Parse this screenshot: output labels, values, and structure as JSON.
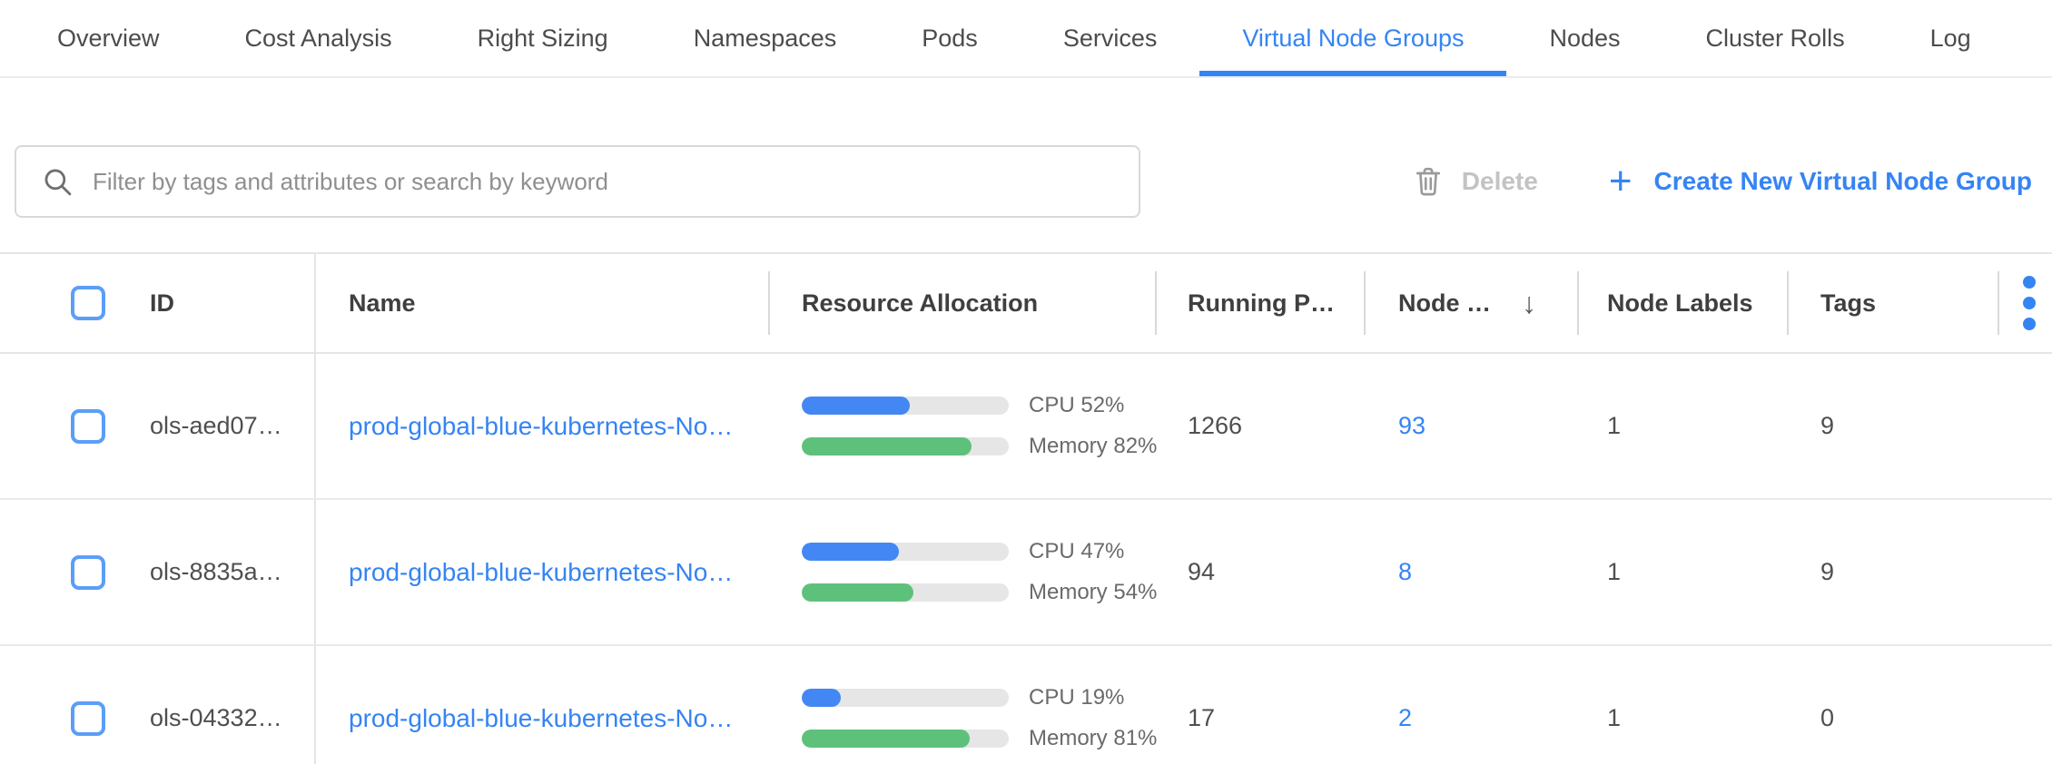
{
  "tabs": {
    "items": [
      {
        "label": "Overview",
        "active": false
      },
      {
        "label": "Cost Analysis",
        "active": false
      },
      {
        "label": "Right Sizing",
        "active": false
      },
      {
        "label": "Namespaces",
        "active": false
      },
      {
        "label": "Pods",
        "active": false
      },
      {
        "label": "Services",
        "active": false
      },
      {
        "label": "Virtual Node Groups",
        "active": true
      },
      {
        "label": "Nodes",
        "active": false
      },
      {
        "label": "Cluster Rolls",
        "active": false
      },
      {
        "label": "Log",
        "active": false
      }
    ]
  },
  "toolbar": {
    "filter_placeholder": "Filter by tags and attributes or search by keyword",
    "filter_value": "",
    "delete_label": "Delete",
    "create_label": "Create New Virtual Node Group"
  },
  "icons": {
    "plus": "+",
    "sort_desc": "↓"
  },
  "table": {
    "columns": {
      "id": "ID",
      "name": "Name",
      "resource": "Resource Allocation",
      "running_pods": "Running P…",
      "nodes": "Node …",
      "node_labels": "Node Labels",
      "tags": "Tags"
    },
    "rows": [
      {
        "id": "ols-aed07…",
        "name": "prod-global-blue-kubernetes-No…",
        "cpu_pct": 52,
        "cpu_label": "CPU 52%",
        "mem_pct": 82,
        "mem_label": "Memory 82%",
        "running_pods": "1266",
        "nodes": "93",
        "node_labels": "1",
        "tags": "9"
      },
      {
        "id": "ols-8835a…",
        "name": "prod-global-blue-kubernetes-No…",
        "cpu_pct": 47,
        "cpu_label": "CPU 47%",
        "mem_pct": 54,
        "mem_label": "Memory 54%",
        "running_pods": "94",
        "nodes": "8",
        "node_labels": "1",
        "tags": "9"
      },
      {
        "id": "ols-04332…",
        "name": "prod-global-blue-kubernetes-No…",
        "cpu_pct": 19,
        "cpu_label": "CPU 19%",
        "mem_pct": 81,
        "mem_label": "Memory 81%",
        "running_pods": "17",
        "nodes": "2",
        "node_labels": "1",
        "tags": "0"
      }
    ]
  },
  "colors": {
    "accent": "#3584f4",
    "bar_blue": "#4387f4",
    "bar_green": "#5ec17b",
    "bar_track": "#e6e6e6"
  }
}
